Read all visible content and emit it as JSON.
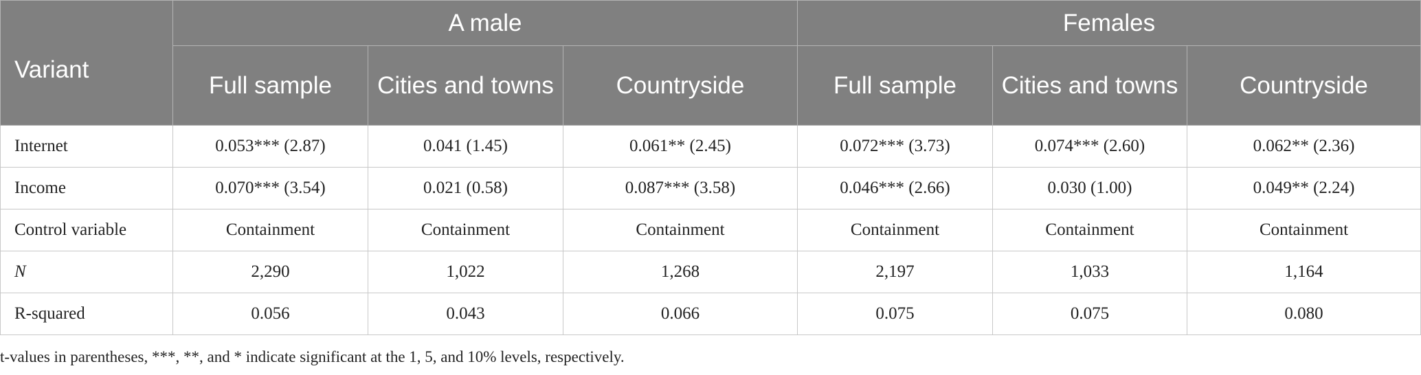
{
  "table": {
    "variant_label": "Variant",
    "groups": [
      "A male",
      "Females"
    ],
    "subheaders": [
      "Full sample",
      "Cities and towns",
      "Countryside",
      "Full sample",
      "Cities and towns",
      "Countryside"
    ],
    "rows": [
      {
        "label": "Internet",
        "italic": false,
        "cells": [
          "0.053*** (2.87)",
          "0.041 (1.45)",
          "0.061** (2.45)",
          "0.072*** (3.73)",
          "0.074*** (2.60)",
          "0.062** (2.36)"
        ]
      },
      {
        "label": "Income",
        "italic": false,
        "cells": [
          "0.070*** (3.54)",
          "0.021 (0.58)",
          "0.087*** (3.58)",
          "0.046*** (2.66)",
          "0.030 (1.00)",
          "0.049** (2.24)"
        ]
      },
      {
        "label": "Control variable",
        "italic": false,
        "cells": [
          "Containment",
          "Containment",
          "Containment",
          "Containment",
          "Containment",
          "Containment"
        ]
      },
      {
        "label": "N",
        "italic": true,
        "cells": [
          "2,290",
          "1,022",
          "1,268",
          "2,197",
          "1,033",
          "1,164"
        ]
      },
      {
        "label": "R-squared",
        "italic": false,
        "cells": [
          "0.056",
          "0.043",
          "0.066",
          "0.075",
          "0.075",
          "0.080"
        ]
      }
    ]
  },
  "footnote": "t-values in parentheses, ***, **, and * indicate significant at the 1, 5, and 10% levels, respectively."
}
